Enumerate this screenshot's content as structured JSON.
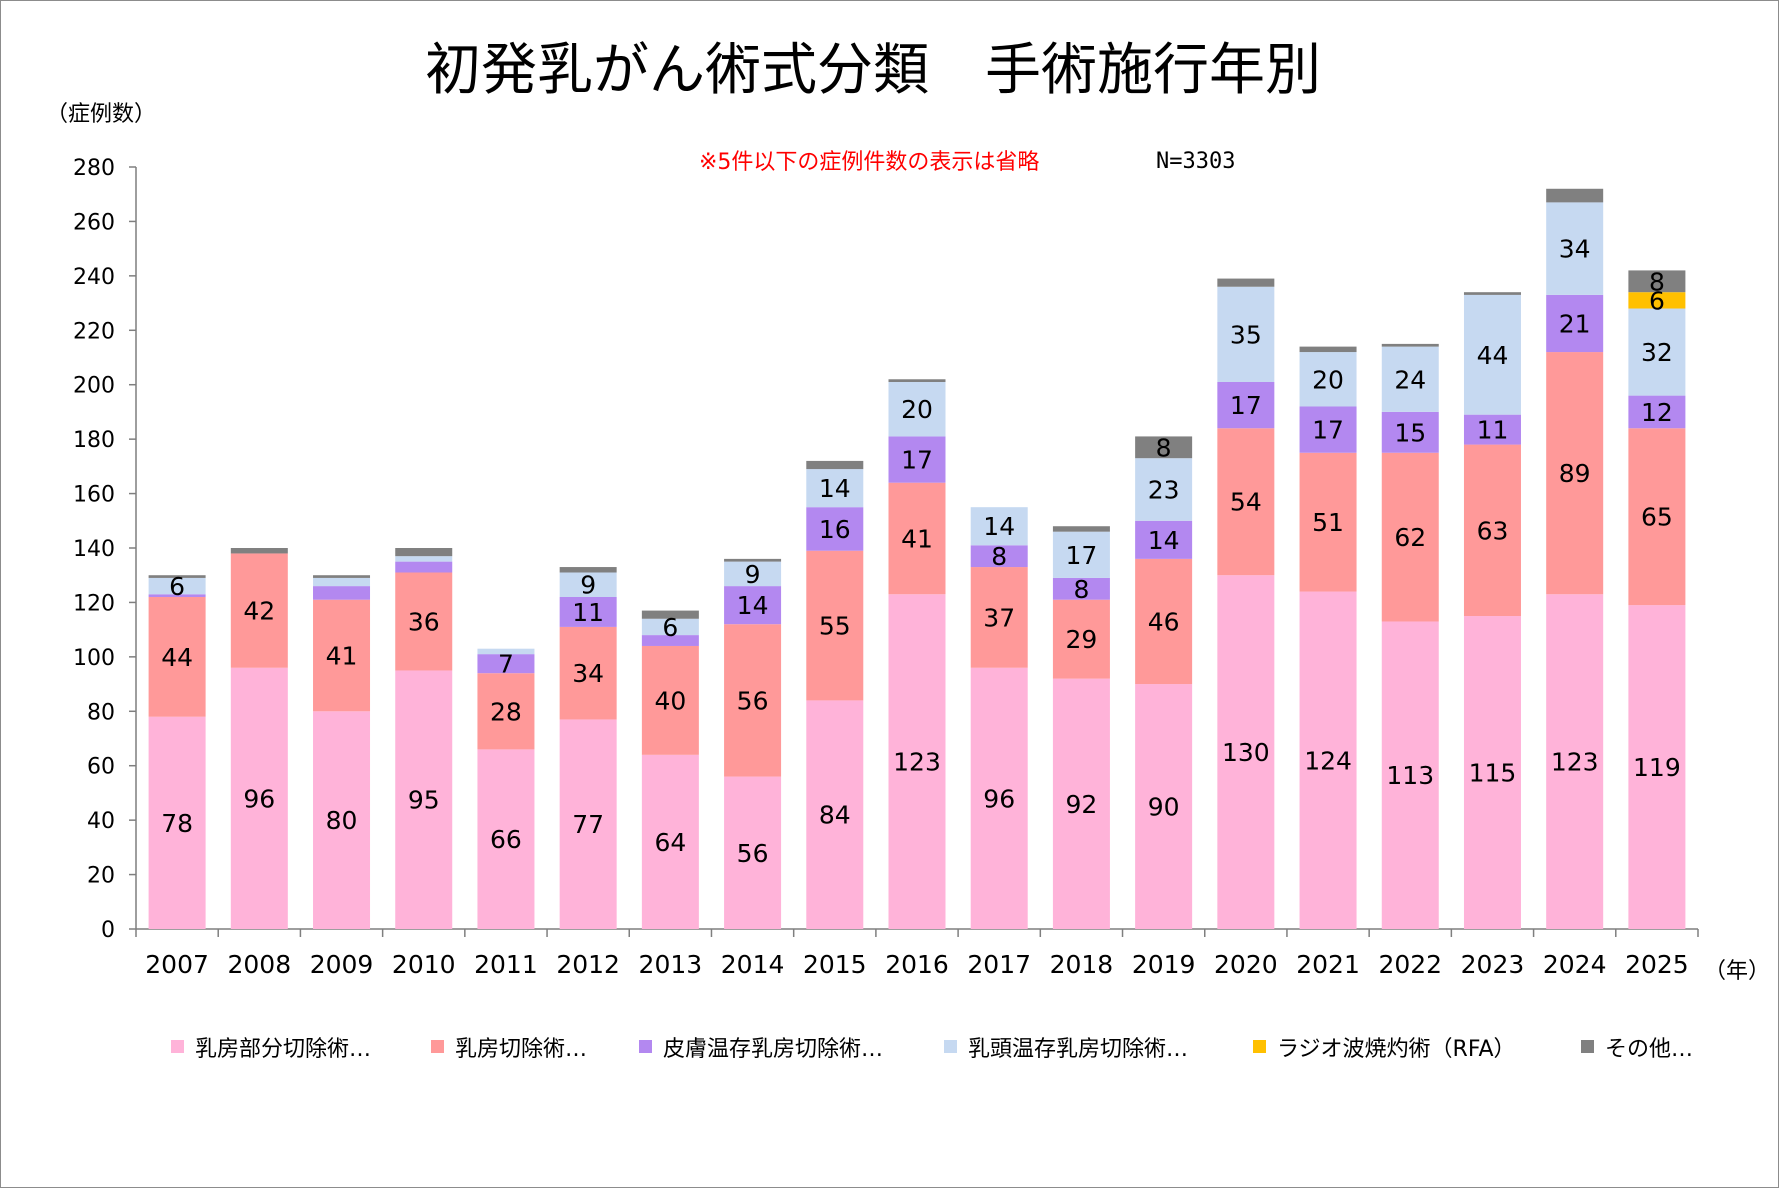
{
  "chart_data": {
    "type": "bar",
    "stacked": true,
    "title": "初発乳がん術式分類　手術施行年別",
    "note": "※5件以下の症例件数の表示は省略",
    "total_label": "N=3303",
    "ylabel": "（症例数）",
    "xlabel": "（年）",
    "ylim": [
      0,
      280
    ],
    "yticks": [
      0,
      20,
      40,
      60,
      80,
      100,
      120,
      140,
      160,
      180,
      200,
      220,
      240,
      260,
      280
    ],
    "grid": false,
    "legend_position": "bottom",
    "categories": [
      "2007",
      "2008",
      "2009",
      "2010",
      "2011",
      "2012",
      "2013",
      "2014",
      "2015",
      "2016",
      "2017",
      "2018",
      "2019",
      "2020",
      "2021",
      "2022",
      "2023",
      "2024",
      "2025"
    ],
    "series": [
      {
        "name": "乳房部分切除術…",
        "color": "#ffb3d9",
        "values": [
          78,
          96,
          80,
          95,
          66,
          77,
          64,
          56,
          84,
          123,
          96,
          92,
          90,
          130,
          124,
          113,
          115,
          123,
          119
        ]
      },
      {
        "name": "乳房切除術…",
        "color": "#ff9999",
        "values": [
          44,
          42,
          41,
          36,
          28,
          34,
          40,
          56,
          55,
          41,
          37,
          29,
          46,
          54,
          51,
          62,
          63,
          89,
          65
        ]
      },
      {
        "name": "皮膚温存乳房切除術…",
        "color": "#b388f0",
        "values": [
          1,
          0,
          5,
          4,
          7,
          11,
          4,
          14,
          16,
          17,
          8,
          8,
          14,
          17,
          17,
          15,
          11,
          21,
          12
        ]
      },
      {
        "name": "乳頭温存乳房切除術…",
        "color": "#c6d9f1",
        "values": [
          6,
          0,
          3,
          2,
          2,
          9,
          6,
          9,
          14,
          20,
          14,
          17,
          23,
          35,
          20,
          24,
          44,
          34,
          32
        ]
      },
      {
        "name": "ラジオ波焼灼術（RFA）",
        "color": "#ffc000",
        "values": [
          0,
          0,
          0,
          0,
          0,
          0,
          0,
          0,
          0,
          0,
          0,
          0,
          0,
          0,
          0,
          0,
          0,
          0,
          6
        ]
      },
      {
        "name": "その他…",
        "color": "#808080",
        "values": [
          1,
          2,
          1,
          3,
          0,
          2,
          3,
          1,
          3,
          1,
          0,
          2,
          8,
          3,
          2,
          1,
          1,
          5,
          8
        ]
      }
    ],
    "label_threshold": 6
  }
}
